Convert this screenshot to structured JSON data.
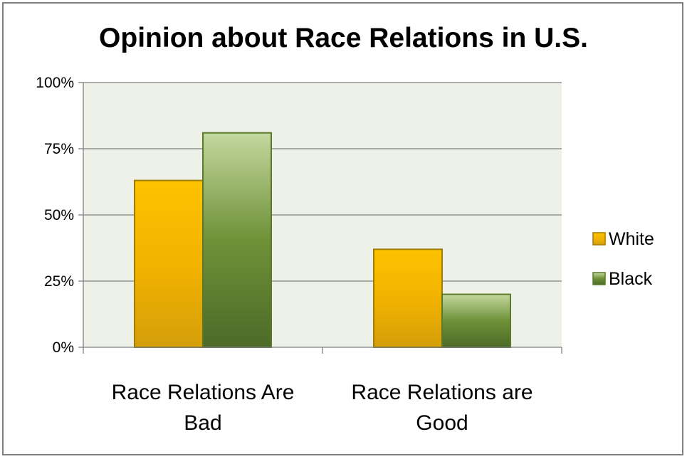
{
  "chart_data": {
    "type": "bar",
    "title": "Opinion about Race Relations in U.S.",
    "categories": [
      "Race Relations Are Bad",
      "Race Relations are Good"
    ],
    "category_label_lines": [
      [
        "Race Relations Are",
        "Bad"
      ],
      [
        "Race Relations are",
        "Good"
      ]
    ],
    "series": [
      {
        "name": "White",
        "values": [
          63,
          37
        ],
        "color": "#f5b400"
      },
      {
        "name": "Black",
        "values": [
          81,
          20
        ],
        "color": "#6e8f3a"
      }
    ],
    "ylim": [
      0,
      100
    ],
    "yticks": [
      0,
      25,
      50,
      75,
      100
    ],
    "ytick_labels": [
      "0%",
      "25%",
      "50%",
      "75%",
      "100%"
    ],
    "grid": true,
    "legend_position": "right",
    "plot_background": "#eef1e7",
    "gridline_color": "#7f7f7f"
  }
}
